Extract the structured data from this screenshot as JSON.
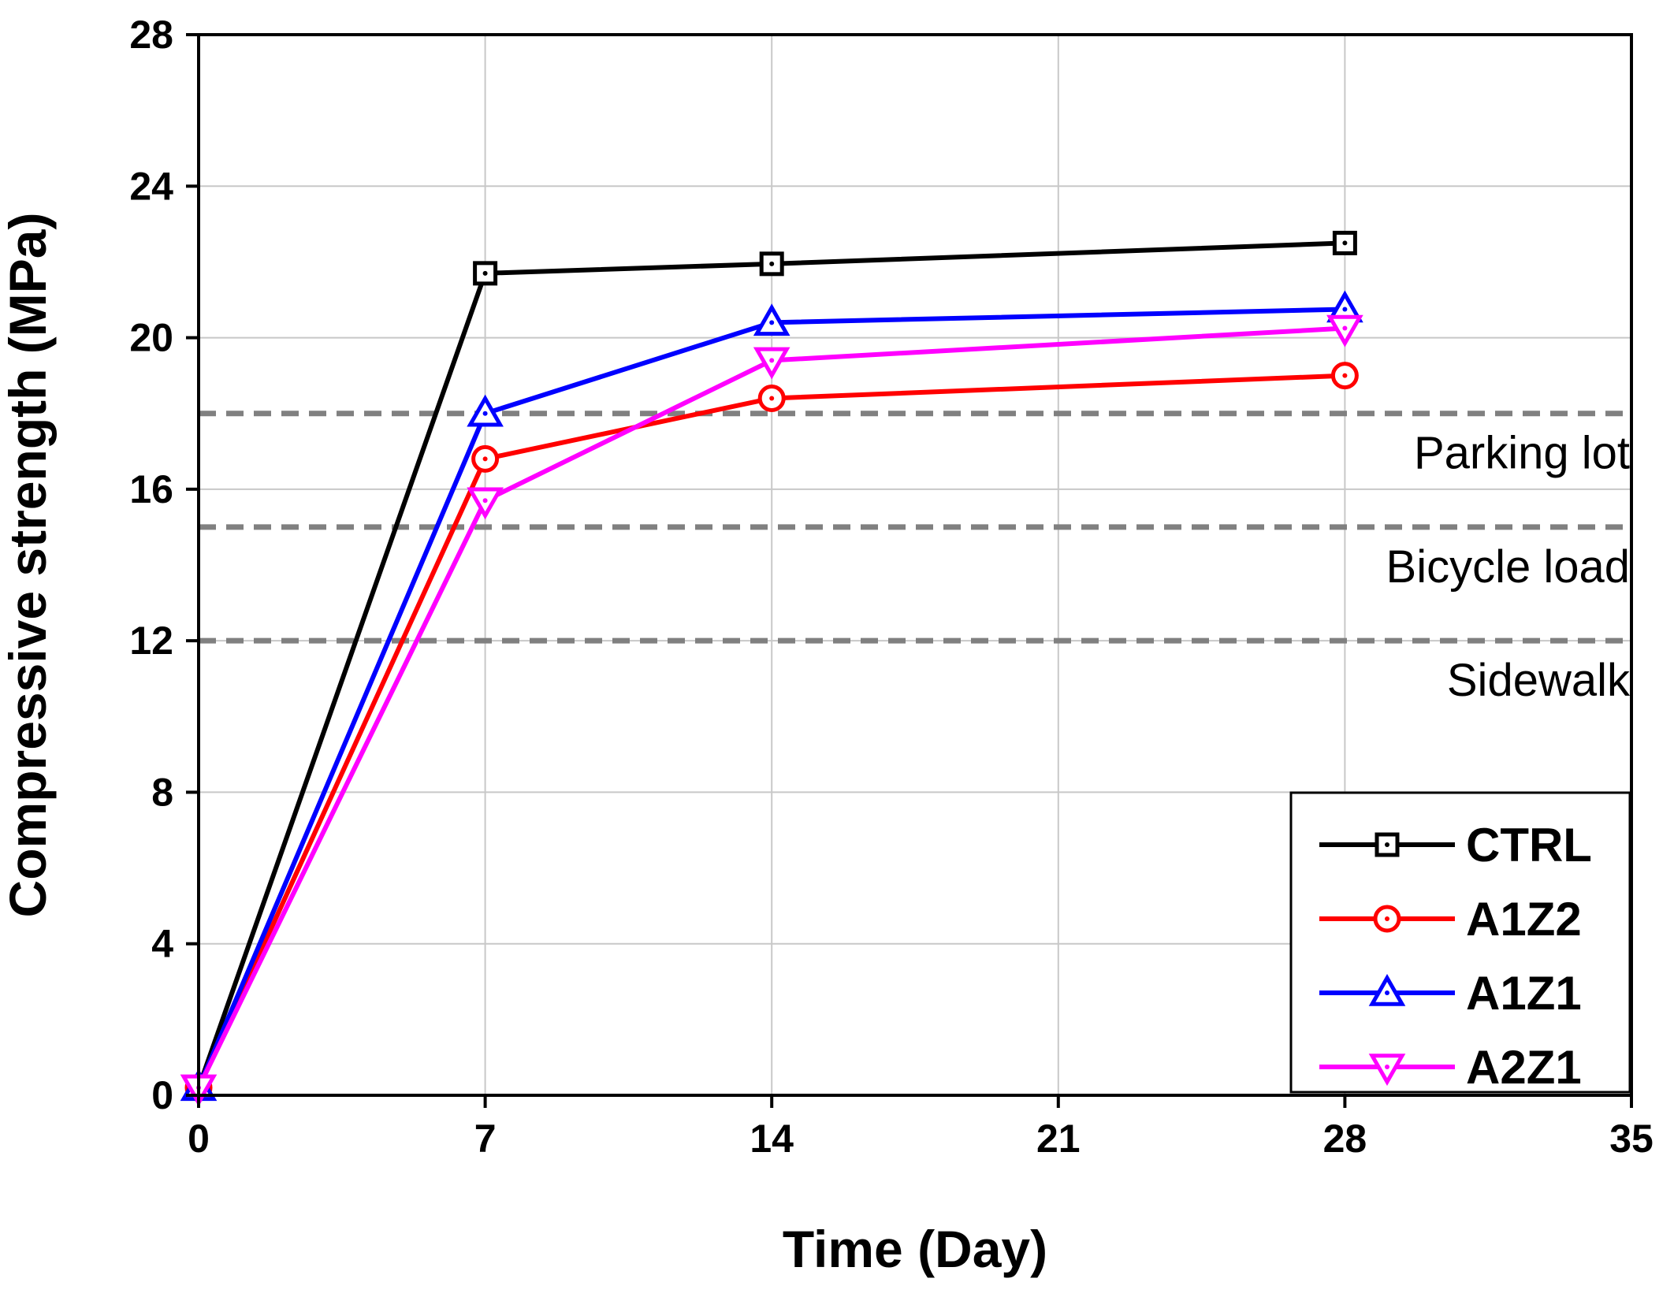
{
  "chart_data": {
    "type": "line",
    "title": "",
    "xlabel": "Time (Day)",
    "ylabel": "Compressive strength (MPa)",
    "xlim": [
      0,
      35
    ],
    "ylim": [
      0,
      28
    ],
    "xticks": [
      0,
      7,
      14,
      21,
      28,
      35
    ],
    "yticks": [
      0,
      4,
      8,
      12,
      16,
      20,
      24,
      28
    ],
    "grid": true,
    "legend_position": "bottom-right",
    "x": [
      0,
      7,
      14,
      28
    ],
    "series": [
      {
        "name": "CTRL",
        "color": "#000000",
        "marker": "square",
        "values": [
          0.2,
          21.7,
          21.95,
          22.5
        ]
      },
      {
        "name": "A1Z2",
        "color": "#ff0000",
        "marker": "circle",
        "values": [
          0.2,
          16.8,
          18.4,
          19.0
        ]
      },
      {
        "name": "A1Z1",
        "color": "#0000ff",
        "marker": "triangle-up",
        "values": [
          0.2,
          18.0,
          20.4,
          20.75
        ]
      },
      {
        "name": "A2Z1",
        "color": "#ff00ff",
        "marker": "triangle-down",
        "values": [
          0.2,
          15.7,
          19.4,
          20.25
        ]
      }
    ],
    "reference_lines": [
      {
        "value": 18,
        "label": "Parking lot"
      },
      {
        "value": 15,
        "label": "Bicycle load"
      },
      {
        "value": 12,
        "label": "Sidewalk"
      }
    ],
    "reference_line_color": "#808080"
  }
}
